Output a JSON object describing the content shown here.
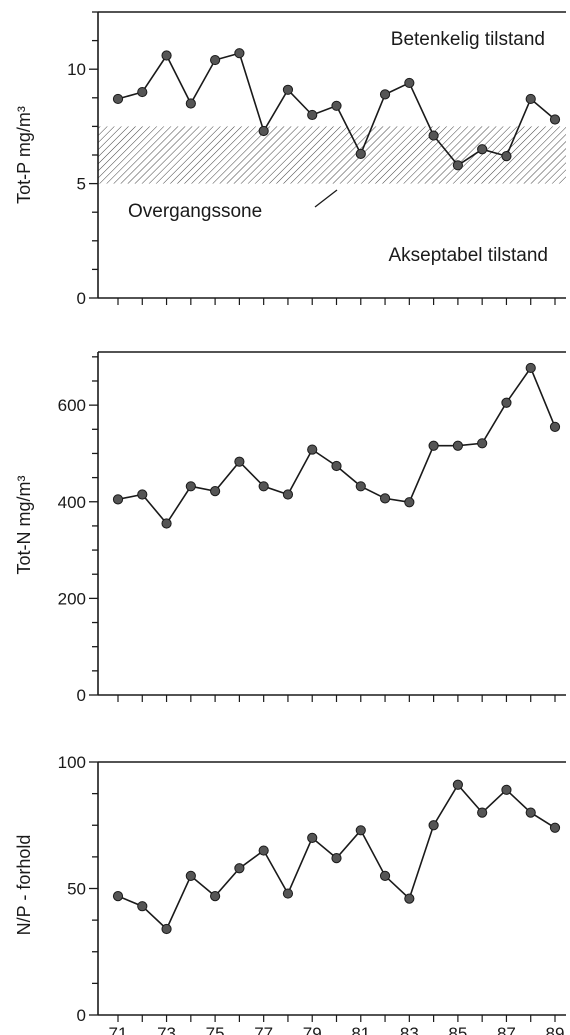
{
  "chart_data": [
    {
      "type": "line",
      "ylabel": "Tot-P mg/m³",
      "ylim": [
        0,
        12.5
      ],
      "yticks": [
        0,
        5,
        10
      ],
      "x": [
        70.5,
        71.5,
        72.5,
        73.5,
        74.5,
        75.5,
        76.5,
        77.5,
        78.5,
        79.5,
        80.5,
        81.5,
        82.5,
        83.5,
        84.5,
        85.5,
        86.5,
        87.5,
        88.5
      ],
      "values": [
        8.7,
        9.0,
        10.6,
        8.5,
        10.4,
        10.7,
        7.3,
        9.1,
        8.0,
        8.4,
        6.3,
        8.9,
        9.4,
        7.1,
        5.8,
        6.5,
        6.2,
        8.7,
        7.8
      ],
      "band": {
        "from": 5,
        "to": 7.5,
        "label": "Overgangssone"
      },
      "annotations": {
        "upper": "Betenkelig tilstand",
        "lower": "Akseptabel tilstand"
      }
    },
    {
      "type": "line",
      "ylabel": "Tot-N mg/m³",
      "ylim": [
        0,
        710
      ],
      "yticks": [
        0,
        200,
        400,
        600
      ],
      "x": [
        70.5,
        71.5,
        72.5,
        73.5,
        74.5,
        75.5,
        76.5,
        77.5,
        78.5,
        79.5,
        80.5,
        81.5,
        82.5,
        83.5,
        84.5,
        85.5,
        86.5,
        87.5,
        88.5
      ],
      "values": [
        405,
        415,
        355,
        432,
        422,
        483,
        432,
        415,
        508,
        474,
        432,
        407,
        399,
        516,
        516,
        521,
        605,
        677,
        555
      ]
    },
    {
      "type": "line",
      "ylabel": "N/P - forhold",
      "ylim": [
        0,
        100
      ],
      "yticks": [
        0,
        50,
        100
      ],
      "x": [
        70.5,
        71.5,
        72.5,
        73.5,
        74.5,
        75.5,
        76.5,
        77.5,
        78.5,
        79.5,
        80.5,
        81.5,
        82.5,
        83.5,
        84.5,
        85.5,
        86.5,
        87.5,
        88.5
      ],
      "values": [
        47,
        43,
        34,
        55,
        47,
        58,
        65,
        48,
        70,
        62,
        73,
        55,
        46,
        75,
        91,
        80,
        89,
        80,
        74
      ],
      "xticks": [
        "71",
        "73",
        "75",
        "77",
        "79",
        "81",
        "83",
        "85",
        "87",
        "89"
      ]
    }
  ]
}
